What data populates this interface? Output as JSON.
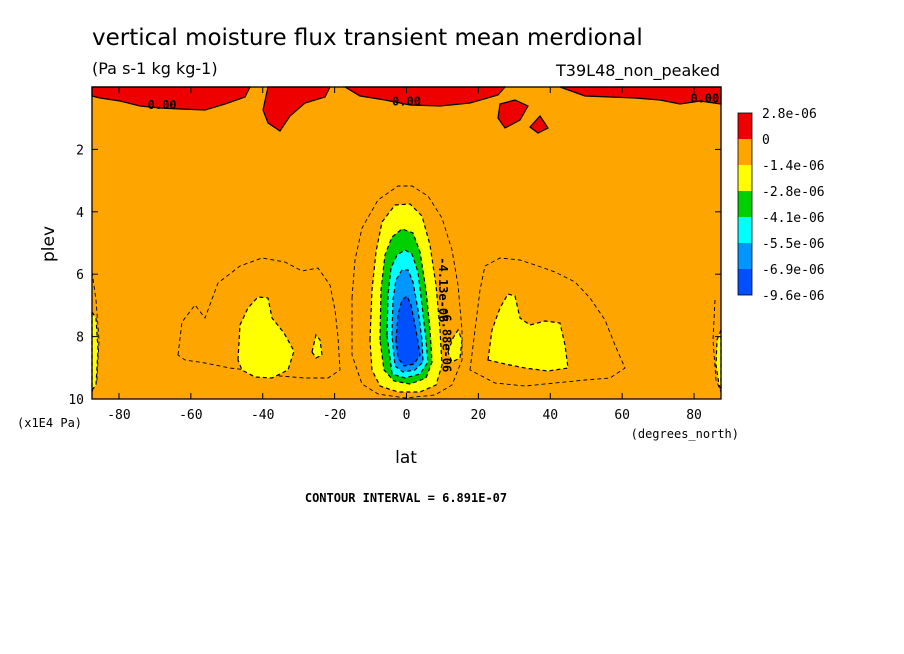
{
  "title": "vertical moisture flux transient mean merdional",
  "units": "(Pa s-1 kg kg-1)",
  "run_label": "T39L48_non_peaked",
  "contour_interval_text": "CONTOUR INTERVAL = 6.891E-07",
  "colors": {
    "red": "#ee0000",
    "orange": "#ffa500",
    "yellow": "#ffff00",
    "green": "#00d000",
    "cyan": "#00ffff",
    "lightblue": "#0096ff",
    "blue": "#0050ff"
  },
  "chart_data": {
    "type": "heatmap",
    "title": "vertical moisture flux transient mean merdional",
    "xlabel": "lat",
    "xunit": "(degrees_north)",
    "ylabel": "plev",
    "yunit": "(x1E4 Pa)",
    "xlim": [
      -87.5,
      87.5
    ],
    "ylim": [
      0,
      10
    ],
    "y_inverted": true,
    "x_ticks": [
      -80,
      -60,
      -40,
      -20,
      0,
      20,
      40,
      60,
      80
    ],
    "y_ticks": [
      2,
      4,
      6,
      8,
      10
    ],
    "legend": {
      "position": "right",
      "labels": [
        "2.8e-06",
        "0",
        "-1.4e-06",
        "-2.8e-06",
        "-4.1e-06",
        "-5.5e-06",
        "-6.9e-06",
        "-9.6e-06"
      ],
      "colors": [
        "#ee0000",
        "#ffa500",
        "#ffff00",
        "#00d000",
        "#00ffff",
        "#0096ff",
        "#0050ff"
      ]
    },
    "contour_labels": [
      {
        "text": "0.00",
        "lat": -68,
        "plev": 0.7
      },
      {
        "text": "0.00",
        "lat": 0,
        "plev": 0.6
      },
      {
        "text": "0.00",
        "lat": 83,
        "plev": 0.5
      },
      {
        "text": "-4.13e-06",
        "lat": 9,
        "plev": 6.5
      },
      {
        "text": "-6.88e-06",
        "lat": 10,
        "plev": 8.1
      }
    ],
    "regions": [
      {
        "name": "positive-top",
        "level": "2.8e-06",
        "description_points": []
      },
      {
        "name": "yellow-left",
        "level": "-1.4e-06"
      },
      {
        "name": "yellow-right",
        "level": "-1.4e-06"
      },
      {
        "name": "equatorial-minimum",
        "level": "-9.6e-06",
        "lat": 0,
        "plev": 8.2
      }
    ]
  }
}
